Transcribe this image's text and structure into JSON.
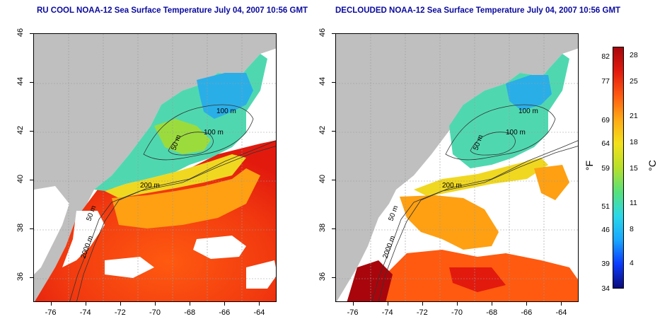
{
  "titles": {
    "left": "RU COOL NOAA-12 Sea Surface Temperature July 04, 2007 10:56 GMT",
    "right": "DECLOUDED NOAA-12 Sea Surface Temperature July 04, 2007 10:56 GMT"
  },
  "axes": {
    "lat_ticks": [
      "36",
      "38",
      "40",
      "42",
      "44",
      "46"
    ],
    "lon_ticks": [
      "-76",
      "-74",
      "-72",
      "-70",
      "-68",
      "-66",
      "-64"
    ],
    "lat_range": [
      35,
      46
    ],
    "lon_range": [
      -77,
      -63
    ]
  },
  "contour_labels": {
    "m200": "200 m",
    "m100": "100 m",
    "m50": "50 m",
    "m2000": "2000 m"
  },
  "colorbar": {
    "fahrenheit_ticks": [
      "82",
      "77",
      "69",
      "64",
      "59",
      "51",
      "46",
      "39",
      "34"
    ],
    "celsius_ticks": [
      "28",
      "25",
      "21",
      "18",
      "15",
      "11",
      "8",
      "4"
    ],
    "unit_f": "°F",
    "unit_c": "°C",
    "colors": [
      "#0b0b7a",
      "#0b3cff",
      "#18a8ff",
      "#2bd8e8",
      "#57e17a",
      "#b7e02a",
      "#f3e11a",
      "#ffaa14",
      "#ff5a10",
      "#e21a0e",
      "#a8060c"
    ]
  },
  "colors": {
    "land": "#bfbfbf",
    "cloud": "#ffffff",
    "title": "#0a0a9e"
  }
}
